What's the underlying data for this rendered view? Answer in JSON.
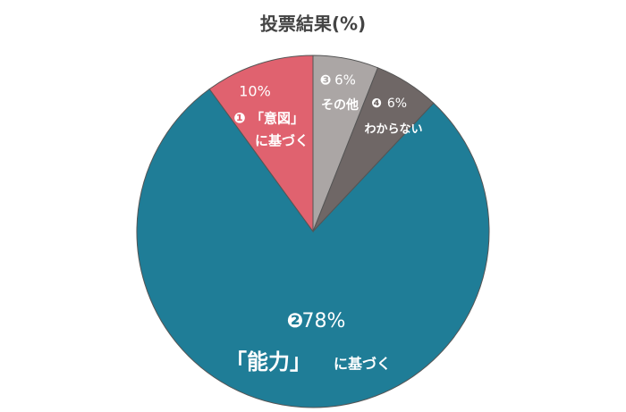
{
  "chart_data": {
    "type": "pie",
    "title": "投票結果(%)",
    "categories": [
      [
        "その他"
      ],
      [
        "わからない"
      ],
      [
        "「能力」",
        "に基づく"
      ],
      [
        "「意図」",
        "に基づく"
      ]
    ],
    "markers": [
      "❸",
      "❹",
      "❷",
      "❶"
    ],
    "values": [
      6,
      6,
      78,
      10
    ],
    "value_labels": [
      "6%",
      "6%",
      "78%",
      "10%"
    ],
    "colors": [
      "#aba6a5",
      "#6f6766",
      "#1f7d97",
      "#e0626f"
    ]
  }
}
